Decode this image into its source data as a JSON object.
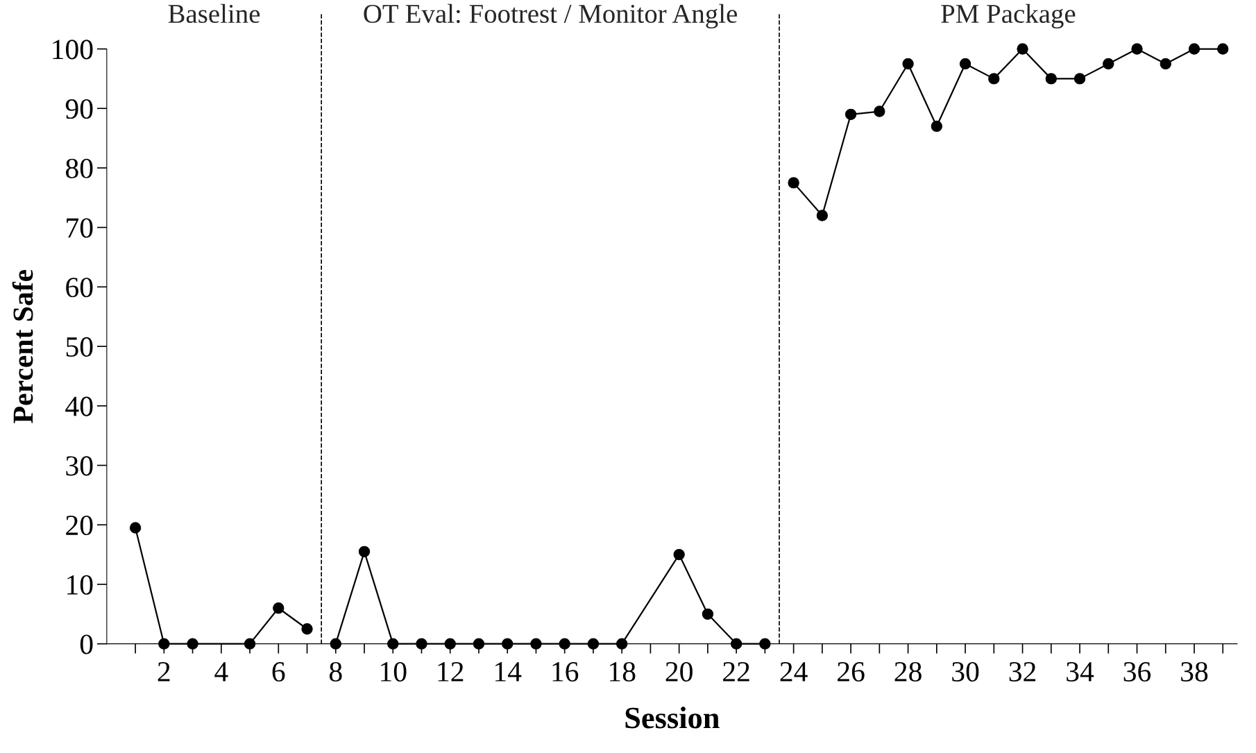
{
  "chart_data": {
    "type": "line",
    "xlabel": "Session",
    "ylabel": "Percent Safe",
    "annotations": [
      "Baseline",
      "OT Eval: Footrest / Monitor Angle",
      "PM Package"
    ],
    "series": [
      {
        "color": "#000000",
        "x": [
          1,
          2,
          3,
          5,
          6,
          7
        ],
        "values": [
          19.5,
          0,
          0,
          0,
          6,
          2.5
        ]
      },
      {
        "color": "#000000",
        "x": [
          8,
          9,
          10,
          11,
          12,
          13,
          14,
          15,
          16,
          17,
          18,
          20,
          21,
          22,
          23
        ],
        "values": [
          0,
          15.5,
          0,
          0,
          0,
          0,
          0,
          0,
          0,
          0,
          0,
          15,
          5,
          0,
          0
        ]
      },
      {
        "color": "#000000",
        "x": [
          24,
          25,
          26,
          27,
          28,
          29,
          30,
          31,
          32,
          33,
          34,
          35,
          36,
          37,
          38,
          39
        ],
        "values": [
          77.5,
          72,
          89,
          89.5,
          97.5,
          87,
          97.5,
          95,
          100,
          95,
          95,
          97.5,
          100,
          97.5,
          100,
          100
        ]
      }
    ],
    "ref_lines": [
      {
        "axis": "x",
        "value": 7.5,
        "color": "#000000",
        "line_style": "dashed"
      },
      {
        "axis": "x",
        "value": 23.5,
        "color": "#000000",
        "line_style": "dashed"
      }
    ],
    "xlim": [
      0,
      39.5
    ],
    "xticks": [
      {
        "value": 1,
        "label": null
      },
      2,
      {
        "value": 3,
        "label": null
      },
      4,
      {
        "value": 5,
        "label": null
      },
      6,
      {
        "value": 7,
        "label": null
      },
      8,
      {
        "value": 9,
        "label": null
      },
      10,
      {
        "value": 11,
        "label": null
      },
      12,
      {
        "value": 13,
        "label": null
      },
      14,
      {
        "value": 15,
        "label": null
      },
      16,
      {
        "value": 17,
        "label": null
      },
      18,
      {
        "value": 19,
        "label": null
      },
      20,
      {
        "value": 21,
        "label": null
      },
      22,
      {
        "value": 23,
        "label": null
      },
      24,
      {
        "value": 25,
        "label": null
      },
      26,
      {
        "value": 27,
        "label": null
      },
      28,
      {
        "value": 29,
        "label": null
      },
      30,
      {
        "value": 31,
        "label": null
      },
      32,
      {
        "value": 33,
        "label": null
      },
      34,
      {
        "value": 35,
        "label": null
      },
      36,
      {
        "value": 37,
        "label": null
      },
      38,
      {
        "value": 39,
        "label": null
      }
    ],
    "ylim": [
      0,
      100
    ],
    "yticks": [
      0,
      10,
      20,
      30,
      40,
      50,
      60,
      70,
      80,
      90,
      100
    ],
    "grid": false,
    "legend": false,
    "marker": "circle",
    "line_style": "solid"
  }
}
